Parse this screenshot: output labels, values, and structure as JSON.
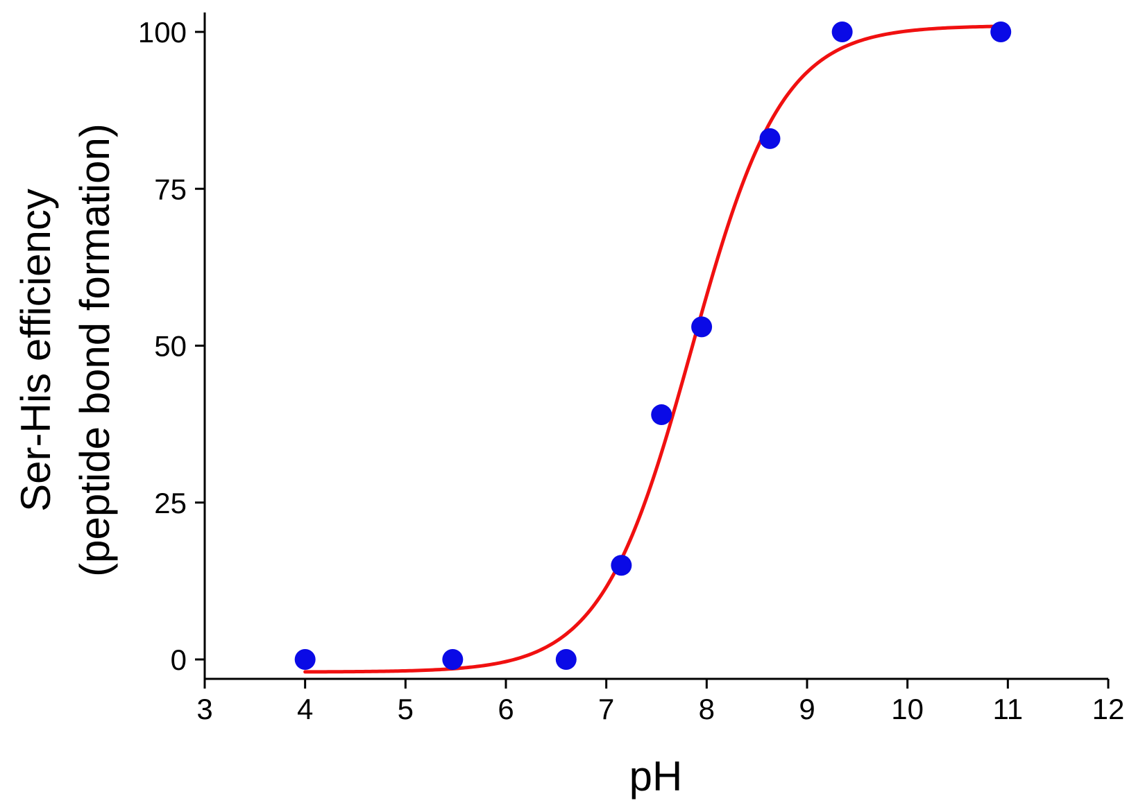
{
  "chart_data": {
    "type": "scatter",
    "title": "",
    "xlabel": "pH",
    "ylabel_line1": "Ser-His efficiency",
    "ylabel_line2": "(peptide bond formation)",
    "xlim": [
      3,
      12
    ],
    "ylim": [
      -3,
      103
    ],
    "x_ticks": [
      3,
      4,
      5,
      6,
      7,
      8,
      9,
      10,
      11,
      12
    ],
    "y_ticks": [
      0,
      25,
      50,
      75,
      100
    ],
    "grid": false,
    "legend": "none",
    "series": [
      {
        "kind": "points",
        "color": "#0a0ae6",
        "x": [
          4.0,
          5.47,
          6.6,
          7.15,
          7.55,
          7.95,
          8.63,
          9.35,
          10.93
        ],
        "y": [
          0,
          0,
          0,
          15,
          39,
          53,
          83,
          100,
          100
        ]
      },
      {
        "kind": "fit",
        "color": "#f01010",
        "model": "sigmoid",
        "bottom": -2,
        "top": 101,
        "x0": 7.85,
        "slope": 0.45,
        "x_range": [
          4.0,
          10.93
        ]
      }
    ]
  }
}
